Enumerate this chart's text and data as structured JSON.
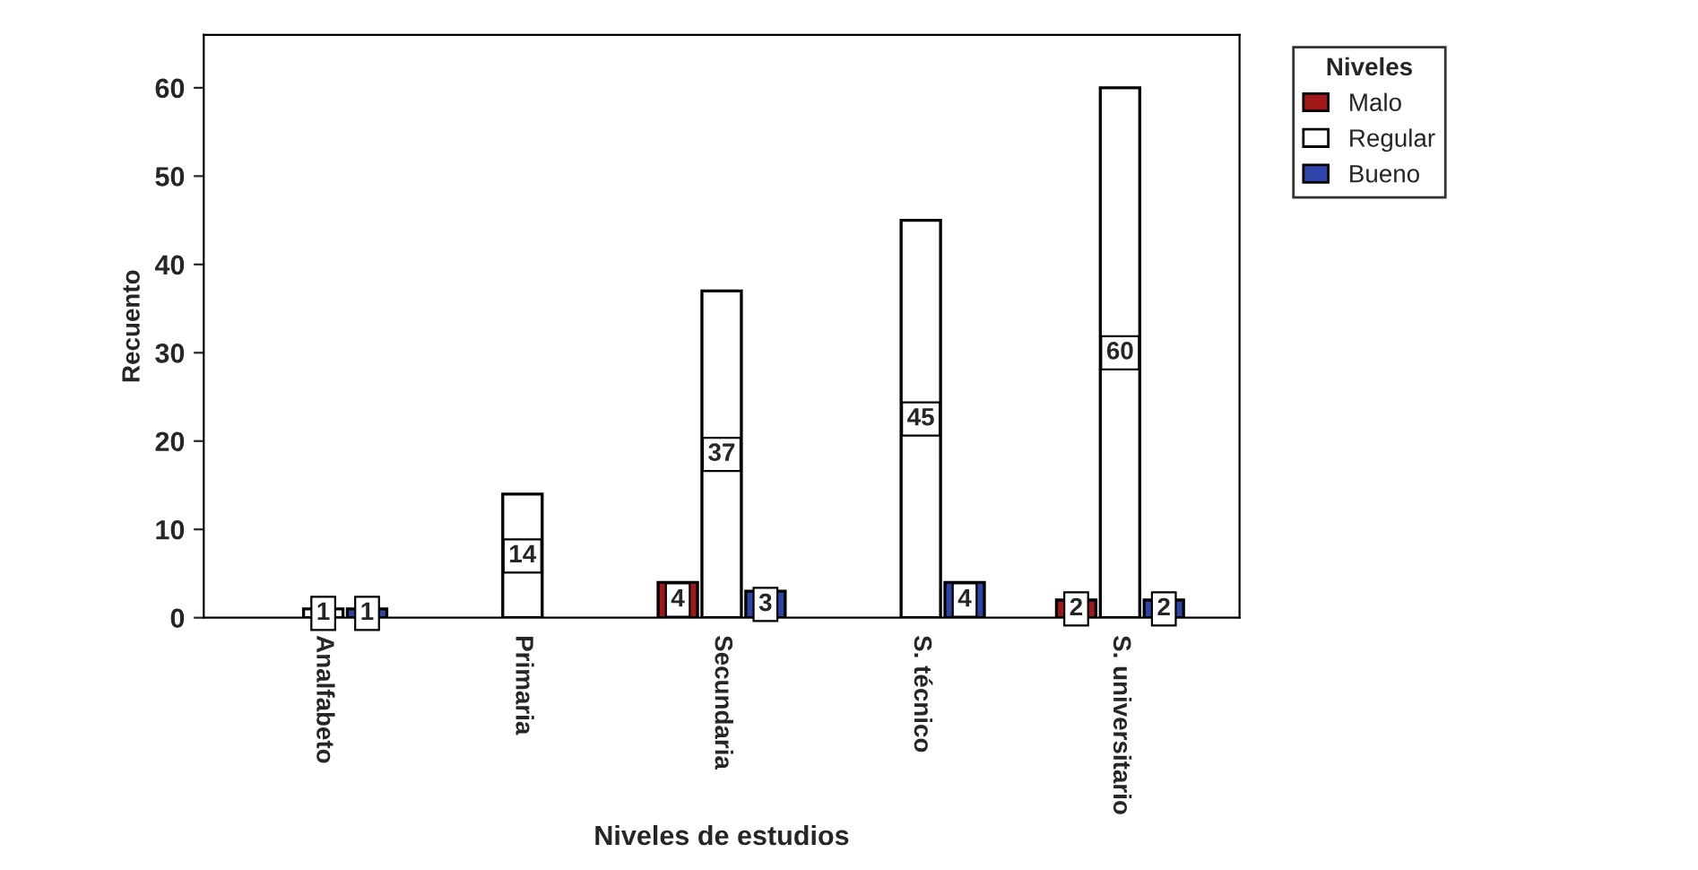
{
  "chart_data": {
    "type": "bar",
    "xlabel": "Niveles de estudios",
    "ylabel": "Recuento",
    "legend_title": "Niveles",
    "categories": [
      "Analfabeto",
      "Primaria",
      "Secundaria",
      "S. técnico",
      "S. universitario"
    ],
    "series": [
      {
        "name": "Malo",
        "color": "#a01818",
        "values": [
          null,
          null,
          4,
          null,
          2
        ]
      },
      {
        "name": "Regular",
        "color": "#ffffff",
        "values": [
          1,
          14,
          37,
          45,
          60
        ]
      },
      {
        "name": "Bueno",
        "color": "#2f44a8",
        "values": [
          1,
          null,
          3,
          4,
          2
        ]
      }
    ],
    "ylim": [
      0,
      66
    ],
    "yticks": [
      0,
      10,
      20,
      30,
      40,
      50,
      60
    ],
    "data_labels": true,
    "legend": "top right",
    "grid": false
  }
}
